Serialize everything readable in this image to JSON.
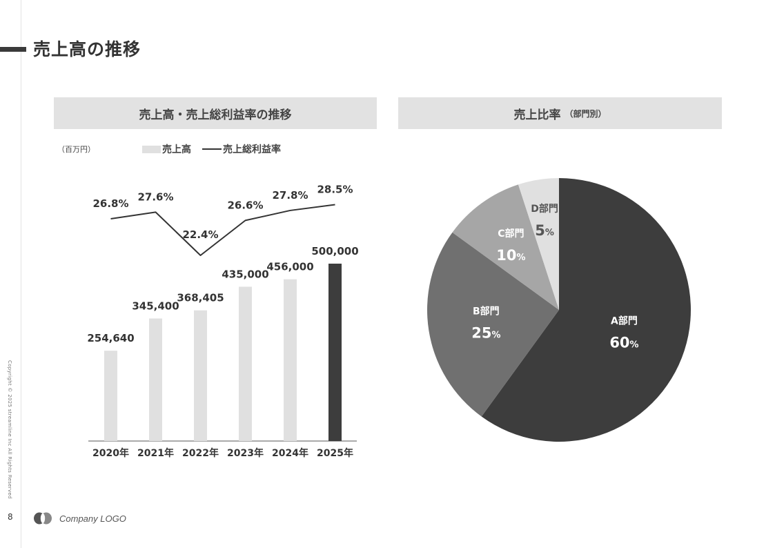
{
  "page": {
    "title": "売上高の推移",
    "page_number": "8",
    "copyright": "Copyright © 2025 streamline Inc All Rights Reserved",
    "company_logo": "Company LOGO"
  },
  "left_panel": {
    "heading": "売上高・売上総利益率の推移",
    "unit": "（百万円）",
    "legend": {
      "bar": "売上高",
      "line": "売上総利益率"
    }
  },
  "right_panel": {
    "heading": "売上比率",
    "heading_sub": "（部門別）"
  },
  "colors": {
    "bar": "#e0e0e0",
    "bar_highlight": "#3d3d3d",
    "line": "#333333",
    "pie": [
      "#3d3d3d",
      "#707070",
      "#a6a6a6",
      "#e0e0e0"
    ],
    "panel_header_bg": "#e2e2e2"
  },
  "chart_data": [
    {
      "type": "bar",
      "title": "売上高・売上総利益率の推移",
      "categories": [
        "2020年",
        "2021年",
        "2022年",
        "2023年",
        "2024年",
        "2025年"
      ],
      "series": [
        {
          "name": "売上高",
          "type": "bar",
          "values": [
            254640,
            345400,
            368405,
            435000,
            456000,
            500000
          ],
          "labels": [
            "254,640",
            "345,400",
            "368,405",
            "435,000",
            "456,000",
            "500,000"
          ],
          "highlight_last": true
        },
        {
          "name": "売上総利益率",
          "type": "line",
          "values": [
            26.8,
            27.6,
            22.4,
            26.6,
            27.8,
            28.5
          ],
          "labels": [
            "26.8%",
            "27.6%",
            "22.4%",
            "26.6%",
            "27.8%",
            "28.5%"
          ]
        }
      ],
      "ylabel": "（百万円）",
      "ylim": [
        0,
        500000
      ],
      "grid": false,
      "legend_position": "top"
    },
    {
      "type": "pie",
      "title": "売上比率（部門別）",
      "slices": [
        {
          "label": "A部門",
          "value": 60,
          "pct_number": "60",
          "pct_sign": "%"
        },
        {
          "label": "B部門",
          "value": 25,
          "pct_number": "25",
          "pct_sign": "%"
        },
        {
          "label": "C部門",
          "value": 10,
          "pct_number": "10",
          "pct_sign": "%"
        },
        {
          "label": "D部門",
          "value": 5,
          "pct_number": "5",
          "pct_sign": "%"
        }
      ],
      "start": "12 o'clock",
      "direction": "clockwise"
    }
  ]
}
